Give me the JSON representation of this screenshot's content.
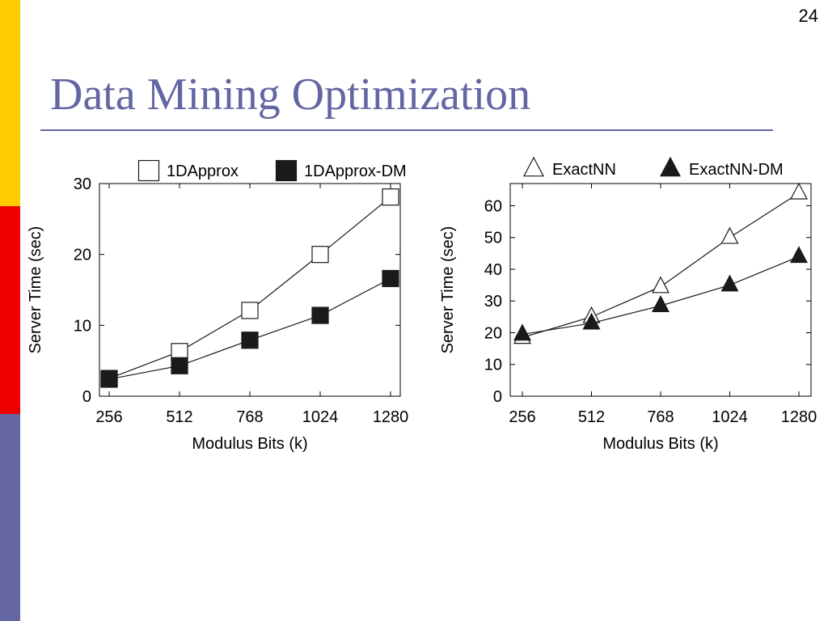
{
  "slide": {
    "number": "24",
    "title": "Data Mining Optimization",
    "colors": {
      "title": "#6366a3",
      "rule": "#6366a3",
      "bar_yellow": "#ffcc00",
      "bar_red": "#ee0000",
      "bar_slate": "#6366a3"
    }
  },
  "chart_data": [
    {
      "type": "line",
      "xlabel": "Modulus Bits (k)",
      "ylabel": "Server Time (sec)",
      "categories": [
        "256",
        "512",
        "768",
        "1024",
        "1280"
      ],
      "x": [
        256,
        512,
        768,
        1024,
        1280
      ],
      "xlim": [
        256,
        1280
      ],
      "ylim": [
        0,
        30
      ],
      "yticks": [
        0,
        10,
        20,
        30
      ],
      "grid": false,
      "legend_position": "top",
      "series": [
        {
          "name": "1DApprox",
          "marker": "square-open",
          "values": [
            2.5,
            6.3,
            12.1,
            20.0,
            28.1
          ]
        },
        {
          "name": "1DApprox-DM",
          "marker": "square-filled",
          "values": [
            2.4,
            4.3,
            7.9,
            11.4,
            16.6
          ]
        }
      ]
    },
    {
      "type": "line",
      "xlabel": "Modulus Bits (k)",
      "ylabel": "Server Time (sec)",
      "categories": [
        "256",
        "512",
        "768",
        "1024",
        "1280"
      ],
      "x": [
        256,
        512,
        768,
        1024,
        1280
      ],
      "xlim": [
        256,
        1280
      ],
      "ylim": [
        0,
        67
      ],
      "yticks": [
        0,
        10,
        20,
        30,
        40,
        50,
        60
      ],
      "grid": false,
      "legend_position": "top",
      "series": [
        {
          "name": "ExactNN",
          "marker": "triangle-open",
          "values": [
            18.5,
            25.0,
            34.5,
            50.0,
            64.0
          ]
        },
        {
          "name": "ExactNN-DM",
          "marker": "triangle-filled",
          "values": [
            19.5,
            23.0,
            28.5,
            35.0,
            44.0
          ]
        }
      ]
    }
  ]
}
